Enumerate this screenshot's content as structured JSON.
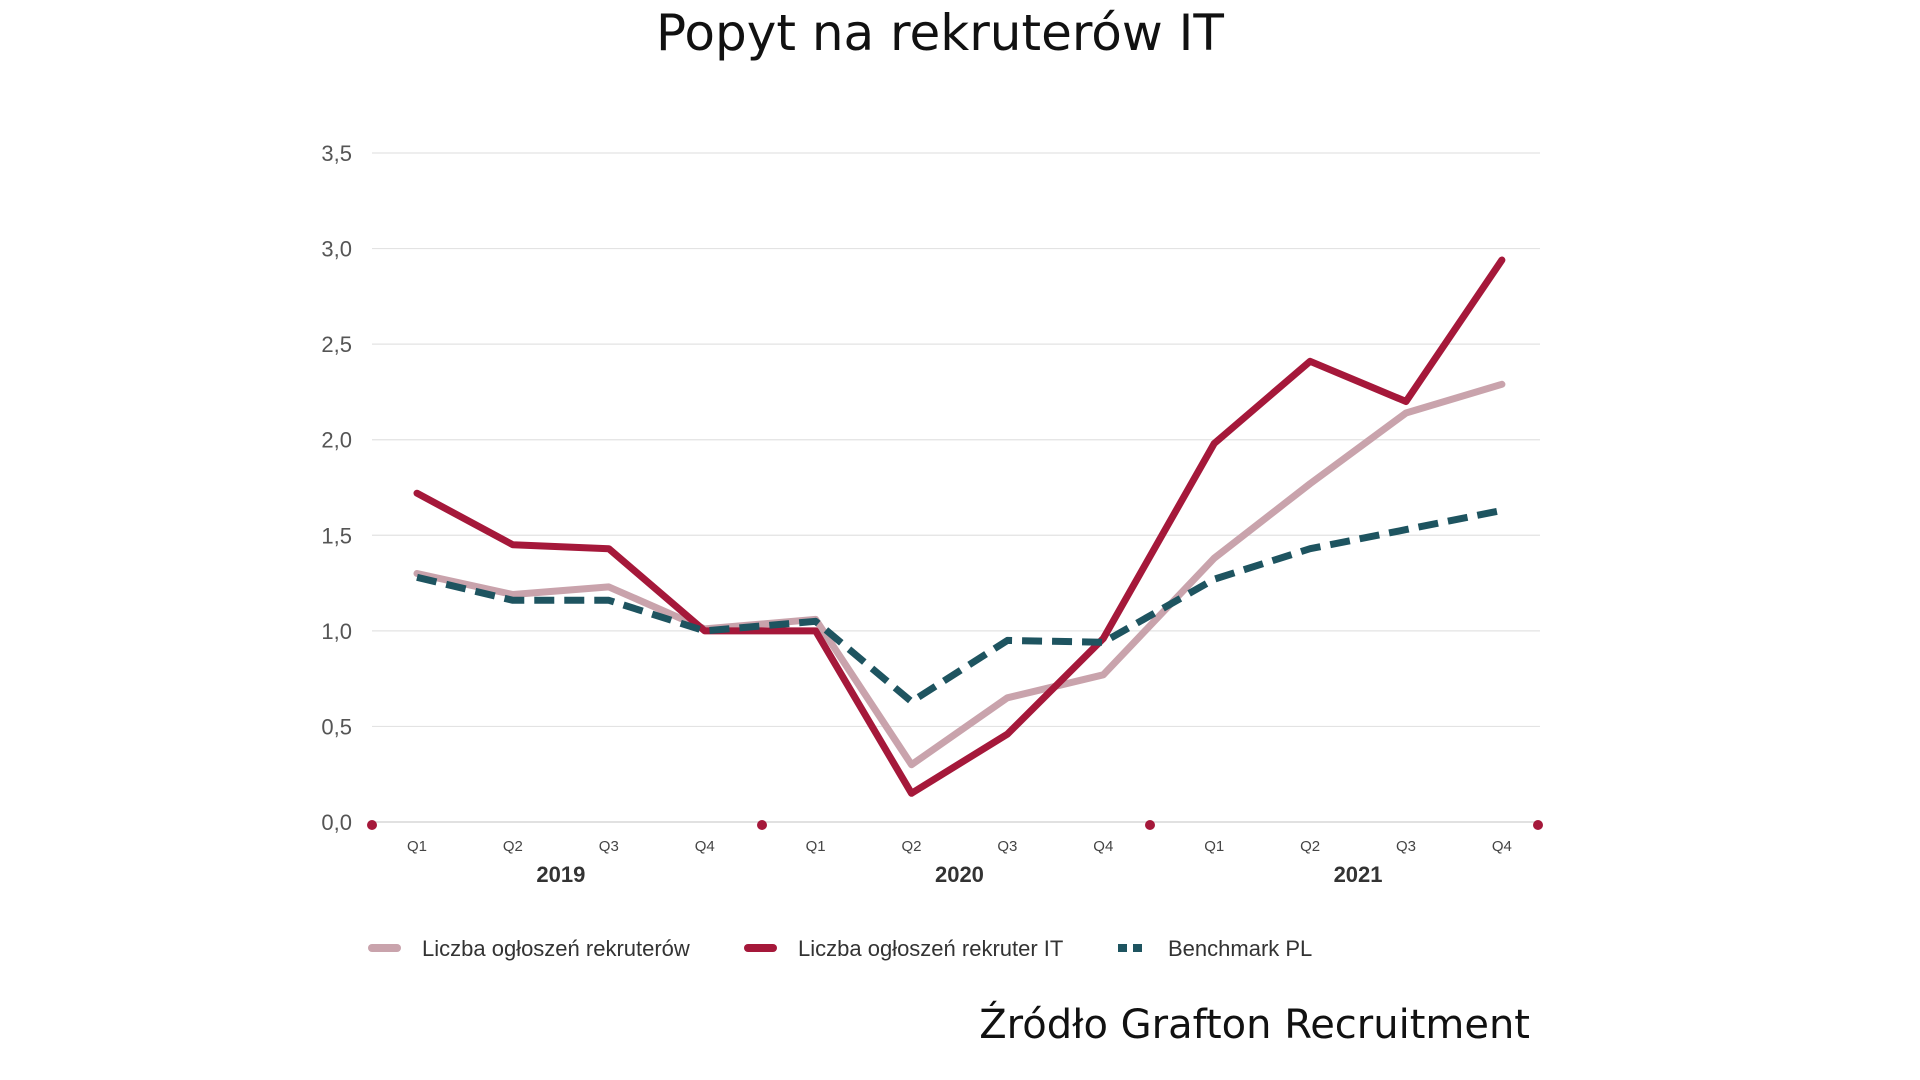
{
  "chart_data": {
    "type": "line",
    "title": "Popyt na rekruterów IT",
    "source": "Źródło Grafton Recruitment",
    "quarter_labels": [
      "Q1",
      "Q2",
      "Q3",
      "Q4",
      "Q1",
      "Q2",
      "Q3",
      "Q4",
      "Q1",
      "Q2",
      "Q3",
      "Q4"
    ],
    "year_labels": [
      "2019",
      "2020",
      "2021"
    ],
    "y_ticks": [
      "0,0",
      "0,5",
      "1,0",
      "1,5",
      "2,0",
      "2,5",
      "3,0",
      "3,5"
    ],
    "ylim": [
      0,
      3.5
    ],
    "grid": true,
    "legend_position": "bottom",
    "series": [
      {
        "name": "Liczba ogłoszeń rekruterów",
        "color": "#c9a3ac",
        "dash": "solid",
        "values": [
          1.3,
          1.19,
          1.23,
          1.01,
          1.06,
          0.3,
          0.65,
          0.77,
          1.38,
          1.77,
          2.14,
          2.29
        ]
      },
      {
        "name": "Liczba ogłoszeń rekruter IT",
        "color": "#a5183a",
        "dash": "solid",
        "values": [
          1.72,
          1.45,
          1.43,
          1.0,
          1.0,
          0.15,
          0.46,
          0.96,
          1.98,
          2.41,
          2.2,
          2.94
        ]
      },
      {
        "name": "Benchmark PL",
        "color": "#1e5460",
        "dash": "dashed",
        "values": [
          1.28,
          1.16,
          1.16,
          1.0,
          1.05,
          0.63,
          0.95,
          0.94,
          1.27,
          1.43,
          1.53,
          1.63
        ]
      }
    ],
    "year_marker_color": "#a5183a"
  }
}
